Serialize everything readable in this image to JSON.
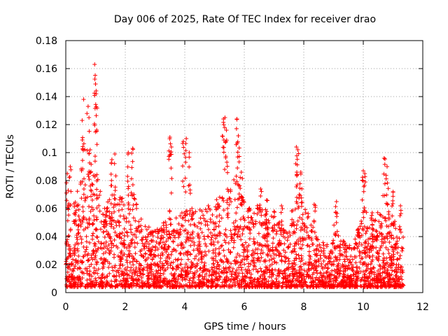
{
  "chart_data": {
    "type": "scatter",
    "title": "Day 006 of 2025, Rate Of TEC Index for receiver drao",
    "xlabel": "GPS time / hours",
    "ylabel": "ROTI / TECUs",
    "xlim": [
      0,
      12
    ],
    "ylim": [
      0,
      0.18
    ],
    "xticks": [
      "0",
      "2",
      "4",
      "6",
      "8",
      "10",
      "12"
    ],
    "xtick_values": [
      0,
      2,
      4,
      6,
      8,
      10,
      12
    ],
    "yticks": [
      "0",
      "0.02",
      "0.04",
      "0.06",
      "0.08",
      "0.1",
      "0.12",
      "0.14",
      "0.16",
      "0.18"
    ],
    "ytick_values": [
      0,
      0.02,
      0.04,
      0.06,
      0.08,
      0.1,
      0.12,
      0.14,
      0.16,
      0.18
    ],
    "grid": true,
    "marker": "+",
    "marker_color": "#ff0000",
    "x_data_range": [
      0,
      11.35
    ],
    "peak_points": [
      {
        "x": 0.05,
        "y": 0.085
      },
      {
        "x": 0.15,
        "y": 0.09
      },
      {
        "x": 0.55,
        "y": 0.123
      },
      {
        "x": 0.6,
        "y": 0.138
      },
      {
        "x": 0.75,
        "y": 0.133
      },
      {
        "x": 0.82,
        "y": 0.102
      },
      {
        "x": 0.97,
        "y": 0.163
      },
      {
        "x": 1.0,
        "y": 0.149
      },
      {
        "x": 1.02,
        "y": 0.142
      },
      {
        "x": 1.55,
        "y": 0.095
      },
      {
        "x": 1.65,
        "y": 0.099
      },
      {
        "x": 2.1,
        "y": 0.1
      },
      {
        "x": 2.25,
        "y": 0.103
      },
      {
        "x": 3.5,
        "y": 0.111
      },
      {
        "x": 3.55,
        "y": 0.104
      },
      {
        "x": 3.95,
        "y": 0.108
      },
      {
        "x": 4.05,
        "y": 0.11
      },
      {
        "x": 4.15,
        "y": 0.1
      },
      {
        "x": 5.3,
        "y": 0.124
      },
      {
        "x": 5.35,
        "y": 0.125
      },
      {
        "x": 5.4,
        "y": 0.116
      },
      {
        "x": 5.75,
        "y": 0.124
      },
      {
        "x": 5.8,
        "y": 0.112
      },
      {
        "x": 5.9,
        "y": 0.086
      },
      {
        "x": 6.55,
        "y": 0.074
      },
      {
        "x": 6.75,
        "y": 0.066
      },
      {
        "x": 7.0,
        "y": 0.058
      },
      {
        "x": 7.25,
        "y": 0.062
      },
      {
        "x": 7.75,
        "y": 0.104
      },
      {
        "x": 7.8,
        "y": 0.102
      },
      {
        "x": 7.9,
        "y": 0.086
      },
      {
        "x": 8.35,
        "y": 0.063
      },
      {
        "x": 9.1,
        "y": 0.065
      },
      {
        "x": 10.0,
        "y": 0.087
      },
      {
        "x": 10.05,
        "y": 0.085
      },
      {
        "x": 10.3,
        "y": 0.057
      },
      {
        "x": 10.7,
        "y": 0.096
      },
      {
        "x": 10.8,
        "y": 0.09
      },
      {
        "x": 11.0,
        "y": 0.072
      },
      {
        "x": 11.25,
        "y": 0.062
      }
    ],
    "activity_profile": {
      "x": [
        0.0,
        0.25,
        0.5,
        0.75,
        1.0,
        1.25,
        1.5,
        1.75,
        2.0,
        2.25,
        2.5,
        2.75,
        3.0,
        3.25,
        3.5,
        3.75,
        4.0,
        4.25,
        4.5,
        4.75,
        5.0,
        5.25,
        5.5,
        5.75,
        6.0,
        6.25,
        6.5,
        6.75,
        7.0,
        7.25,
        7.5,
        7.75,
        8.0,
        8.25,
        8.5,
        8.75,
        9.0,
        9.25,
        9.5,
        9.75,
        10.0,
        10.25,
        10.5,
        10.75,
        11.0,
        11.35
      ],
      "typical_max": [
        0.07,
        0.06,
        0.075,
        0.085,
        0.09,
        0.06,
        0.065,
        0.07,
        0.06,
        0.075,
        0.05,
        0.045,
        0.04,
        0.045,
        0.06,
        0.05,
        0.055,
        0.06,
        0.055,
        0.06,
        0.06,
        0.07,
        0.075,
        0.08,
        0.06,
        0.055,
        0.06,
        0.055,
        0.05,
        0.045,
        0.045,
        0.07,
        0.065,
        0.045,
        0.035,
        0.03,
        0.045,
        0.035,
        0.03,
        0.035,
        0.06,
        0.045,
        0.055,
        0.065,
        0.05,
        0.04
      ]
    }
  }
}
